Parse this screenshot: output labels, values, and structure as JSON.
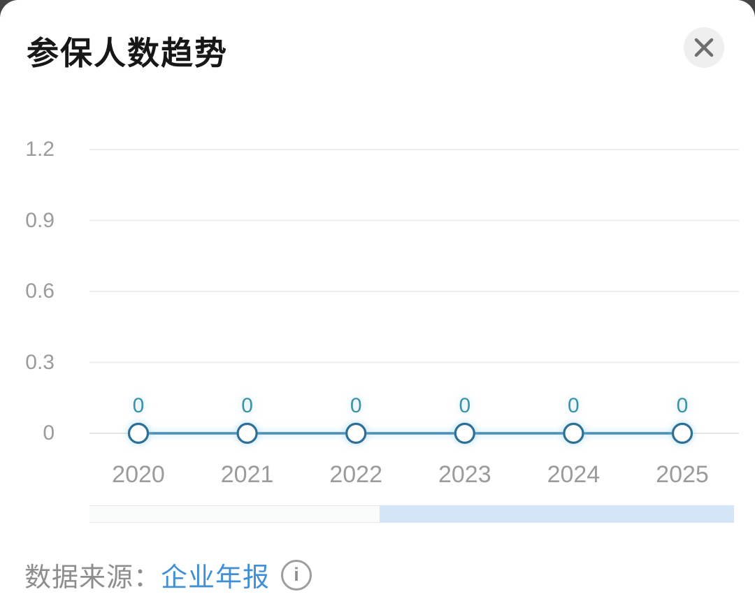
{
  "header": {
    "title": "参保人数趋势"
  },
  "chart_data": {
    "type": "line",
    "title": "参保人数趋势",
    "categories": [
      "2020",
      "2021",
      "2022",
      "2023",
      "2024",
      "2025"
    ],
    "values": [
      0,
      0,
      0,
      0,
      0,
      0
    ],
    "point_labels": [
      "0",
      "0",
      "0",
      "0",
      "0",
      "0"
    ],
    "yticks": [
      0,
      0.3,
      0.6,
      0.9,
      1.2
    ],
    "ytick_labels": [
      "0",
      "0.3",
      "0.6",
      "0.9",
      "1.2"
    ],
    "ylim": [
      0,
      1.2
    ],
    "xlabel": "",
    "ylabel": "",
    "grid": true,
    "legend": false,
    "colors": {
      "line": "#4a8cb4",
      "axis_line": "#e6e6e6",
      "marker_stroke": "#2f6f94",
      "marker_fill": "#ffffff",
      "value_label": "#3c93a5",
      "axis_label": "#9b9b9b",
      "gridline": "#ededed"
    }
  },
  "zoom_slider": {
    "selected_start_pct": 45,
    "selected_end_pct": 100
  },
  "footer": {
    "source_label": "数据来源：",
    "source_link": "企业年报"
  }
}
